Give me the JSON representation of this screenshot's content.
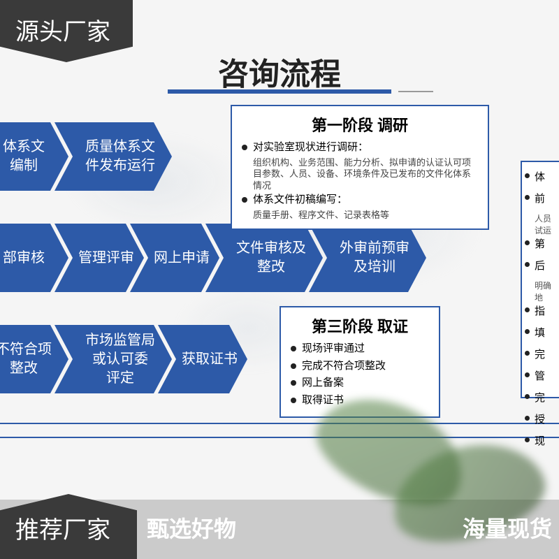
{
  "colors": {
    "accent": "#2d5aa8",
    "dark_tag": "#3a3a3a",
    "text": "#222222",
    "leaf": "#5a8a4a"
  },
  "top_tag": "源头厂家",
  "bottom_tag": "推荐厂家",
  "footer": {
    "left": "甄选好物",
    "right": "海量现货"
  },
  "title": "咨询流程",
  "row1": [
    {
      "label": "体系文\n编制",
      "w": "w110"
    },
    {
      "label": "质量体系文\n件发布运行",
      "w": "w150"
    }
  ],
  "row2": [
    {
      "label": "部审核",
      "w": "w110"
    },
    {
      "label": "管理评审",
      "w": "w110"
    },
    {
      "label": "网上申请",
      "w": "w110"
    },
    {
      "label": "文件审核及\n整改",
      "w": "w150"
    },
    {
      "label": "外审前预审\n及培训",
      "w": "w150"
    }
  ],
  "row3": [
    {
      "label": "不符合项\n整改",
      "w": "w110"
    },
    {
      "label": "市场监管局\n或认可委\n评定",
      "w": "w150"
    },
    {
      "label": "获取证书",
      "w": "w110"
    }
  ],
  "phase1": {
    "title": "第一阶段 调研",
    "items": [
      {
        "main": "对实验室现状进行调研：",
        "sub": "组织机构、业务范围、能力分析、拟申请的认证认可项目参数、人员、设备、环境条件及已发布的文件化体系情况"
      },
      {
        "main": "体系文件初稿编写：",
        "sub": "质量手册、程序文件、记录表格等"
      }
    ]
  },
  "phase3": {
    "title": "第三阶段 取证",
    "items": [
      {
        "main": "现场评审通过"
      },
      {
        "main": "完成不符合项整改"
      },
      {
        "main": "网上备案"
      },
      {
        "main": "取得证书"
      }
    ]
  },
  "right_partial": {
    "items": [
      {
        "main": "体"
      },
      {
        "main": "前",
        "sub": "人员试运"
      },
      {
        "main": "第"
      },
      {
        "main": "后",
        "sub": "明确地"
      },
      {
        "main": "指"
      },
      {
        "main": "填"
      },
      {
        "main": "完"
      },
      {
        "main": "管"
      },
      {
        "main": "完"
      },
      {
        "main": "授"
      },
      {
        "main": "现"
      }
    ]
  }
}
